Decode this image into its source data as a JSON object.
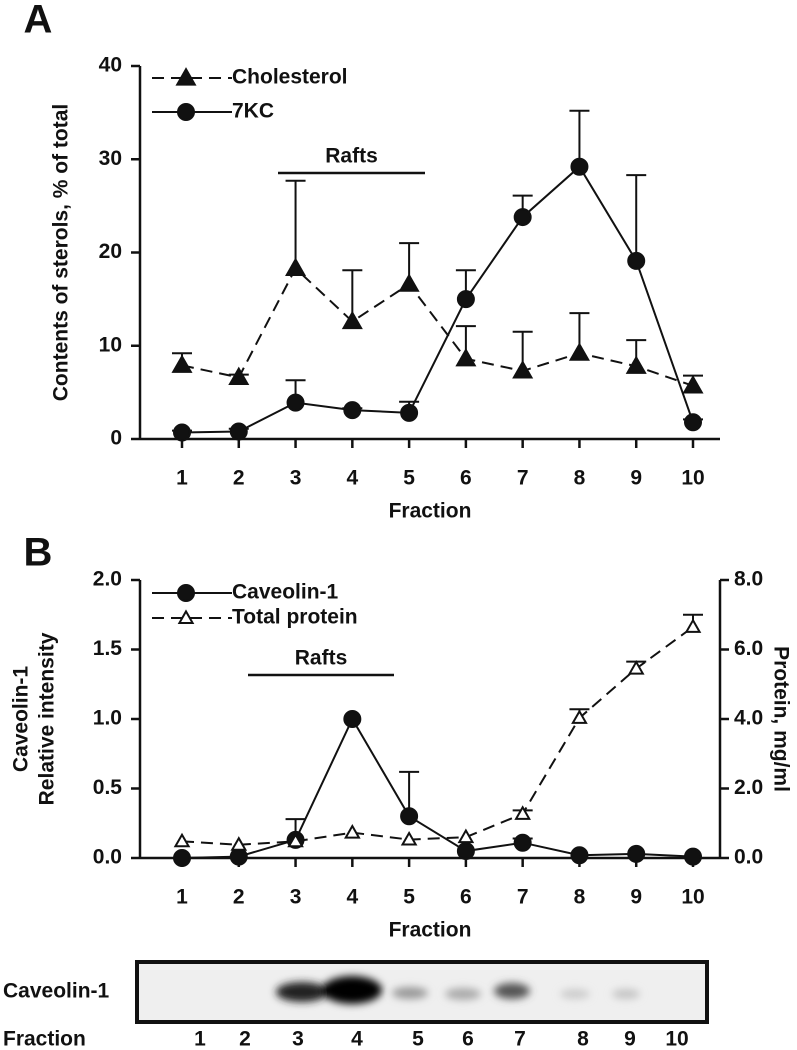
{
  "chart_data": [
    {
      "type": "line",
      "panel": "A",
      "categories": [
        "1",
        "2",
        "3",
        "4",
        "5",
        "6",
        "7",
        "8",
        "9",
        "10"
      ],
      "xlabel": "Fraction",
      "ylabel": "Contents of sterols, % of total",
      "ylim": [
        0,
        40
      ],
      "yticks": [
        0,
        10,
        20,
        30,
        40
      ],
      "annotation": "Rafts",
      "legend": "upper left",
      "series": [
        {
          "name": "Cholesterol",
          "color": "#111111",
          "marker": "triangle",
          "filled": true,
          "dashed": true,
          "values": [
            7.9,
            6.6,
            18.3,
            12.6,
            16.6,
            8.6,
            7.3,
            9.2,
            7.8,
            5.7
          ],
          "errors": [
            1.3,
            0.3,
            9.4,
            5.5,
            4.4,
            3.5,
            4.2,
            4.3,
            2.8,
            1.1
          ]
        },
        {
          "name": "7KC",
          "color": "#111111",
          "marker": "circle",
          "filled": true,
          "dashed": false,
          "values": [
            0.7,
            0.8,
            3.9,
            3.1,
            2.8,
            15.0,
            23.8,
            29.2,
            19.1,
            1.8
          ],
          "errors": [
            0.2,
            0.3,
            2.4,
            0.2,
            1.2,
            3.1,
            2.3,
            6.0,
            9.2,
            0.3
          ]
        }
      ]
    },
    {
      "type": "line",
      "panel": "B",
      "categories": [
        "1",
        "2",
        "3",
        "4",
        "5",
        "6",
        "7",
        "8",
        "9",
        "10"
      ],
      "xlabel": "Fraction",
      "ylabel": [
        "Caveolin-1",
        "Relative intensity"
      ],
      "y2label": "Protein, mg/ml",
      "ylim": [
        0,
        2
      ],
      "yticks": [
        {
          "value": 0,
          "label": "0.0"
        },
        {
          "value": 0.5,
          "label": "0.5"
        },
        {
          "value": 1,
          "label": "1.0"
        },
        {
          "value": 1.5,
          "label": "1.5"
        },
        {
          "value": 2,
          "label": "2.0"
        }
      ],
      "y2lim": [
        0,
        8
      ],
      "y2ticks": [
        {
          "value": 0,
          "label": "0.0"
        },
        {
          "value": 2,
          "label": "2.0"
        },
        {
          "value": 4,
          "label": "4.0"
        },
        {
          "value": 6,
          "label": "6.0"
        },
        {
          "value": 8,
          "label": "8.0"
        }
      ],
      "annotation": "Rafts",
      "legend": "upper left",
      "series": [
        {
          "name": "Caveolin-1",
          "color": "#111111",
          "marker": "circle",
          "filled": true,
          "dashed": false,
          "values": [
            0.0,
            0.01,
            0.13,
            1.0,
            0.3,
            0.05,
            0.11,
            0.02,
            0.03,
            0.01
          ],
          "errors": [
            null,
            null,
            0.15,
            null,
            0.32,
            null,
            0.03,
            null,
            null,
            null
          ]
        },
        {
          "name": " Total protein",
          "color": "#111111",
          "marker": "triangle",
          "filled": false,
          "dashed": true,
          "axis": "y2",
          "values": [
            0.48,
            0.38,
            0.48,
            0.73,
            0.53,
            0.6,
            1.27,
            4.03,
            5.45,
            6.65
          ],
          "errors": [
            null,
            null,
            null,
            null,
            null,
            null,
            0.1,
            0.25,
            0.2,
            0.35
          ]
        }
      ]
    }
  ],
  "blot": {
    "label": "Caveolin-1",
    "x_label": "Fraction",
    "lanes": [
      "1",
      "2",
      "3",
      "4",
      "5",
      "6",
      "7",
      "8",
      "9",
      "10"
    ]
  }
}
